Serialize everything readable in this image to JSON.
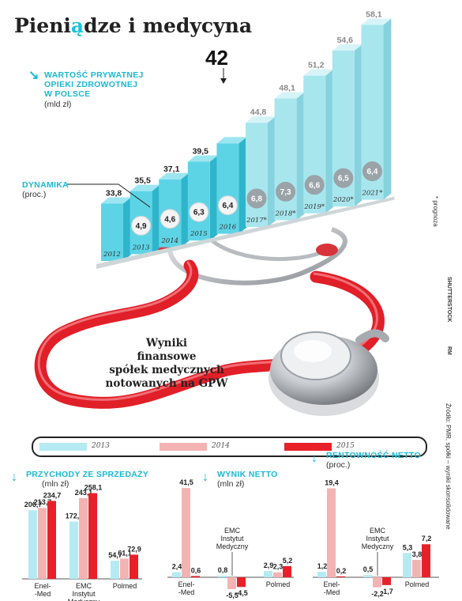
{
  "title_part1": "Pieni",
  "title_accent": "ą",
  "title_part2": "dze i medycyna",
  "main_chart": {
    "label_lines": [
      "WARTOŚĆ PRYWATNEJ",
      "OPIEKI ZDROWOTNEJ",
      "W POLSCE"
    ],
    "unit": "(mld zł)",
    "highlight_value": "42",
    "dynamics_label": "DYNAMIKA",
    "dynamics_unit": "(proc.)",
    "forecast_note": "* prognoza"
  },
  "stethoscope_caption_lines": [
    "Wyniki",
    "finansowe",
    "spółek medycznych",
    "notowanych na GPW"
  ],
  "photo_credit": "SHUTTERSTOCK",
  "rm_mark": "RM",
  "source_note": "Źródło: PMR, spółki – wyniki skonsolidowane",
  "legend": [
    {
      "label": "2013",
      "color": "#b5eaf3"
    },
    {
      "label": "2014",
      "color": "#f4b3b3"
    },
    {
      "label": "2015",
      "color": "#e8202a"
    }
  ],
  "chart_data": [
    {
      "type": "bar",
      "title": "WARTOŚĆ PRYWATNEJ OPIEKI ZDROWOTNEJ W POLSCE",
      "ylabel": "(mld zł)",
      "categories": [
        "2012",
        "2013",
        "2014",
        "2015",
        "2016",
        "2017*",
        "2018*",
        "2019*",
        "2020*",
        "2021*"
      ],
      "values": [
        33.8,
        35.5,
        37.1,
        39.5,
        42,
        44.8,
        48.1,
        51.2,
        54.6,
        58.1
      ],
      "value_labels": [
        "33,8",
        "35,5",
        "37,1",
        "39,5",
        "42",
        "44,8",
        "48,1",
        "51,2",
        "54,6",
        "58,1"
      ],
      "dynamics": {
        "name": "DYNAMIKA",
        "unit": "(proc.)",
        "values": [
          null,
          4.9,
          4.6,
          6.3,
          6.4,
          6.8,
          7.3,
          6.6,
          6.5,
          6.4
        ],
        "labels": [
          "",
          "4,9",
          "4,6",
          "6,3",
          "6,4",
          "6,8",
          "7,3",
          "6,6",
          "6,5",
          "6,4"
        ]
      },
      "forecast_from": "2017*",
      "colors": {
        "actual": "#5dd4e6",
        "forecast": "#a8e6ee"
      }
    },
    {
      "type": "bar",
      "title": "PRZYCHODY ZE SPRZEDAŻY",
      "ylabel": "(mln zł)",
      "categories": [
        [
          "Enel-",
          "-Med"
        ],
        [
          "EMC",
          "Instytut",
          "Medyczny"
        ],
        [
          "Polmed"
        ]
      ],
      "series": [
        {
          "name": "2013",
          "values": [
            206.7,
            172.6,
            54.7
          ],
          "labels": [
            "206,7",
            "172,6",
            "54,7"
          ]
        },
        {
          "name": "2014",
          "values": [
            213.7,
            243.1,
            61.1
          ],
          "labels": [
            "213,7",
            "243,1",
            "61,1"
          ]
        },
        {
          "name": "2015",
          "values": [
            234.7,
            258.1,
            72.9
          ],
          "labels": [
            "234,7",
            "258,1",
            "72,9"
          ]
        }
      ]
    },
    {
      "type": "bar",
      "title": "WYNIK NETTO",
      "ylabel": "(mln zł)",
      "categories": [
        [
          "Enel-",
          "-Med"
        ],
        [
          "EMC",
          "Instytut",
          "Medyczny"
        ],
        [
          "Polmed"
        ]
      ],
      "series": [
        {
          "name": "2013",
          "values": [
            2.4,
            0.8,
            2.9
          ],
          "labels": [
            "2,4",
            "0,8",
            "2,9"
          ]
        },
        {
          "name": "2014",
          "values": [
            41.5,
            -5.5,
            2.3
          ],
          "labels": [
            "41,5",
            "-5,5",
            "2,3"
          ]
        },
        {
          "name": "2015",
          "values": [
            0.6,
            -4.5,
            5.2
          ],
          "labels": [
            "0,6",
            "-4,5",
            "5,2"
          ]
        }
      ]
    },
    {
      "type": "bar",
      "title": "RENTOWNOŚĆ NETTO",
      "ylabel": "(proc.)",
      "categories": [
        [
          "Enel-",
          "-Med"
        ],
        [
          "EMC",
          "Instytut",
          "Medyczny"
        ],
        [
          "Polmed"
        ]
      ],
      "series": [
        {
          "name": "2013",
          "values": [
            1.2,
            0.5,
            5.3
          ],
          "labels": [
            "1,2",
            "0,5",
            "5,3"
          ]
        },
        {
          "name": "2014",
          "values": [
            19.4,
            -2.2,
            3.8
          ],
          "labels": [
            "19,4",
            "-2,2",
            "3,8"
          ]
        },
        {
          "name": "2015",
          "values": [
            0.2,
            -1.7,
            7.2
          ],
          "labels": [
            "0,2",
            "-1,7",
            "7,2"
          ]
        }
      ]
    }
  ]
}
